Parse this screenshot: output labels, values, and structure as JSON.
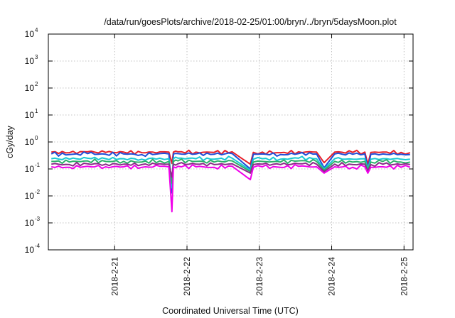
{
  "chart_data": {
    "type": "line",
    "title": "/data/run/goesPlots/archive/2018-02-25/01:00/bryn/../bryn/5daysMoon.plot",
    "xlabel": "Coordinated Universal Time (UTC)",
    "ylabel": "cGy/day",
    "yscale": "log",
    "ylim": [
      0.0001,
      10000
    ],
    "xlim": [
      "2018-02-20 02:00",
      "2018-02-25 03:00"
    ],
    "grid": true,
    "legend": "none",
    "y_ticks": [
      {
        "base": "10",
        "exp": "-4"
      },
      {
        "base": "10",
        "exp": "-3"
      },
      {
        "base": "10",
        "exp": "-2"
      },
      {
        "base": "10",
        "exp": "-1"
      },
      {
        "base": "10",
        "exp": "0"
      },
      {
        "base": "10",
        "exp": "1"
      },
      {
        "base": "10",
        "exp": "2"
      },
      {
        "base": "10",
        "exp": "3"
      },
      {
        "base": "10",
        "exp": "4"
      }
    ],
    "x_ticks": [
      "2018-2-21",
      "2018-2-22",
      "2018-2-23",
      "2018-2-24",
      "2018-2-25"
    ],
    "x": [
      "2018-02-20 03:00",
      "2018-02-20 09:00",
      "2018-02-20 15:00",
      "2018-02-20 21:00",
      "2018-02-21 03:00",
      "2018-02-21 09:00",
      "2018-02-21 15:00",
      "2018-02-21 18:00",
      "2018-02-21 19:00",
      "2018-02-21 19:30",
      "2018-02-21 21:00",
      "2018-02-22 03:00",
      "2018-02-22 09:00",
      "2018-02-22 15:00",
      "2018-02-22 21:00",
      "2018-02-22 22:00",
      "2018-02-23 01:00",
      "2018-02-23 07:00",
      "2018-02-23 13:00",
      "2018-02-23 19:00",
      "2018-02-23 21:30",
      "2018-02-24 01:00",
      "2018-02-24 07:00",
      "2018-02-24 11:00",
      "2018-02-24 12:00",
      "2018-02-24 13:00",
      "2018-02-24 17:00",
      "2018-02-24 23:00",
      "2018-02-25 02:00"
    ],
    "series": [
      {
        "color": "#e8202a",
        "values": [
          0.42,
          0.4,
          0.43,
          0.41,
          0.42,
          0.4,
          0.43,
          0.42,
          0.16,
          0.42,
          0.43,
          0.42,
          0.41,
          0.43,
          0.15,
          0.41,
          0.42,
          0.4,
          0.43,
          0.42,
          0.17,
          0.42,
          0.41,
          0.42,
          0.15,
          0.41,
          0.42,
          0.41,
          0.4
        ]
      },
      {
        "color": "#1f4ed8",
        "values": [
          0.36,
          0.34,
          0.37,
          0.35,
          0.36,
          0.34,
          0.37,
          0.36,
          0.013,
          0.36,
          0.37,
          0.36,
          0.35,
          0.37,
          0.1,
          0.35,
          0.36,
          0.34,
          0.37,
          0.36,
          0.11,
          0.36,
          0.35,
          0.36,
          0.1,
          0.35,
          0.36,
          0.35,
          0.34
        ]
      },
      {
        "color": "#19c8d2",
        "values": [
          0.24,
          0.23,
          0.25,
          0.24,
          0.24,
          0.23,
          0.25,
          0.24,
          0.02,
          0.24,
          0.25,
          0.24,
          0.23,
          0.25,
          0.09,
          0.23,
          0.24,
          0.23,
          0.25,
          0.24,
          0.1,
          0.24,
          0.23,
          0.24,
          0.1,
          0.23,
          0.24,
          0.23,
          0.23
        ]
      },
      {
        "color": "#2db06a",
        "values": [
          0.19,
          0.18,
          0.2,
          0.19,
          0.19,
          0.18,
          0.2,
          0.19,
          0.03,
          0.19,
          0.2,
          0.19,
          0.18,
          0.2,
          0.08,
          0.18,
          0.19,
          0.18,
          0.2,
          0.19,
          0.09,
          0.19,
          0.18,
          0.19,
          0.09,
          0.18,
          0.19,
          0.18,
          0.18
        ]
      },
      {
        "color": "#8a2b86",
        "values": [
          0.15,
          0.145,
          0.155,
          0.15,
          0.15,
          0.145,
          0.155,
          0.15,
          0.05,
          0.15,
          0.155,
          0.15,
          0.145,
          0.155,
          0.07,
          0.145,
          0.15,
          0.145,
          0.155,
          0.15,
          0.08,
          0.15,
          0.145,
          0.15,
          0.08,
          0.145,
          0.15,
          0.145,
          0.145
        ]
      },
      {
        "color": "#f000ea",
        "values": [
          0.12,
          0.115,
          0.125,
          0.12,
          0.12,
          0.115,
          0.125,
          0.12,
          0.0026,
          0.12,
          0.125,
          0.12,
          0.115,
          0.125,
          0.04,
          0.115,
          0.12,
          0.115,
          0.125,
          0.12,
          0.07,
          0.12,
          0.115,
          0.12,
          0.07,
          0.115,
          0.12,
          0.115,
          0.115
        ]
      }
    ]
  }
}
